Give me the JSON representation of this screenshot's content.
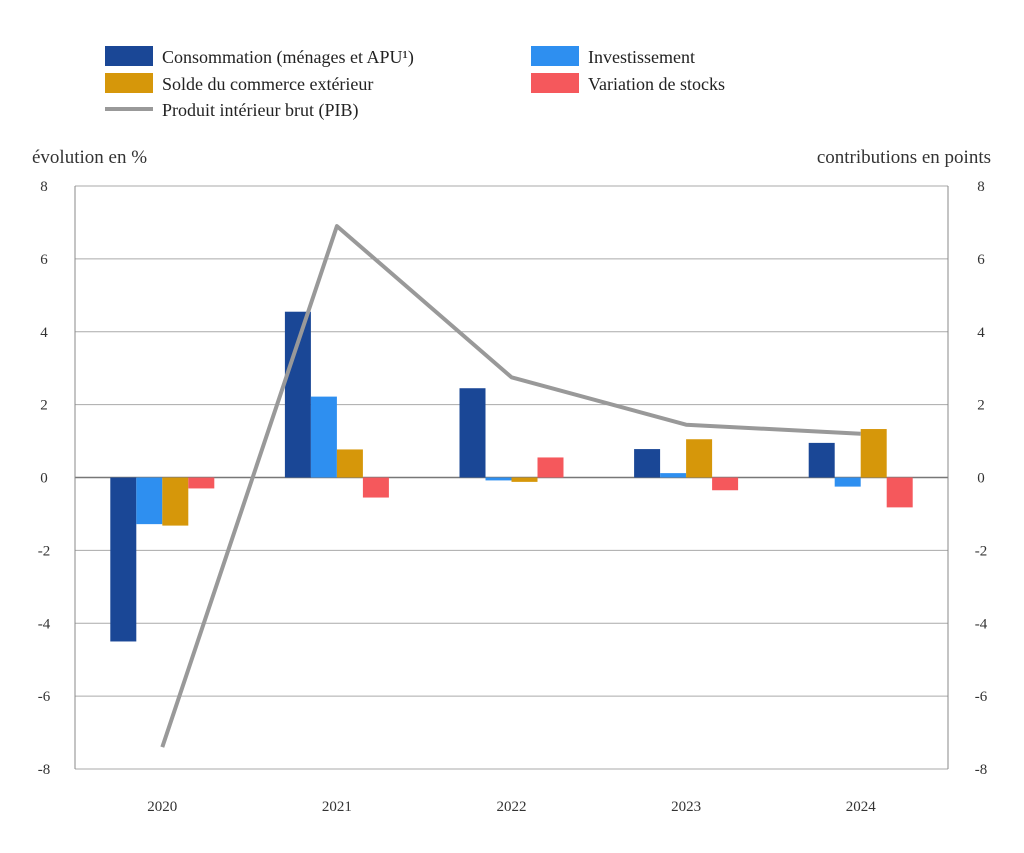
{
  "chart_data": {
    "type": "bar",
    "categories": [
      "2020",
      "2021",
      "2022",
      "2023",
      "2024"
    ],
    "left_axis_label": "évolution en %",
    "right_axis_label": "contributions en points",
    "ylim": [
      -8,
      8
    ],
    "yticks": [
      8,
      6,
      4,
      2,
      0,
      -2,
      -4,
      -6,
      -8
    ],
    "ytick_labels": [
      "8",
      "6",
      "4",
      "2",
      "0",
      "-2",
      "-4",
      "-6",
      "-8"
    ],
    "grid": true,
    "legend_position": "top",
    "series": [
      {
        "name": "Consommation (ménages et APU¹)",
        "kind": "bar",
        "color": "#1a4796",
        "values": [
          -4.5,
          4.55,
          2.45,
          0.78,
          0.95
        ]
      },
      {
        "name": "Investissement",
        "kind": "bar",
        "color": "#2e8ff0",
        "values": [
          -1.28,
          2.22,
          -0.08,
          0.12,
          -0.25
        ]
      },
      {
        "name": "Solde du commerce extérieur",
        "kind": "bar",
        "color": "#d6970a",
        "values": [
          -1.32,
          0.77,
          -0.12,
          1.05,
          1.33
        ]
      },
      {
        "name": "Variation de stocks",
        "kind": "bar",
        "color": "#f5585c",
        "values": [
          -0.3,
          -0.55,
          0.55,
          -0.35,
          -0.82
        ]
      },
      {
        "name": "Produit intérieur brut (PIB)",
        "kind": "line",
        "color": "#999999",
        "values": [
          -7.4,
          6.9,
          2.75,
          1.45,
          1.2
        ]
      }
    ]
  }
}
